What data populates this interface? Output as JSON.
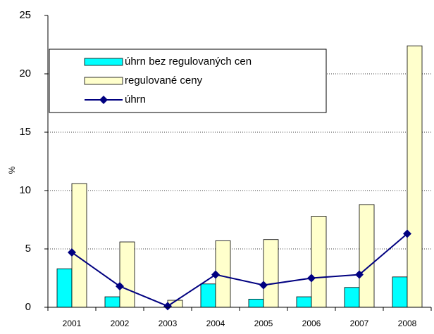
{
  "chart_data": {
    "type": "bar",
    "categories": [
      "2001",
      "2002",
      "2003",
      "2004",
      "2005",
      "2006",
      "2007",
      "2008"
    ],
    "ylabel": "%",
    "series": [
      {
        "name": "úhrn bez regulovaných cen",
        "color": "#00ffff",
        "type": "bar",
        "values": [
          3.3,
          0.9,
          0,
          2.0,
          0.7,
          0.9,
          1.7,
          2.6
        ]
      },
      {
        "name": "regulované ceny",
        "color": "#ffffcc",
        "type": "bar",
        "values": [
          10.6,
          5.6,
          0.6,
          5.7,
          5.8,
          7.8,
          8.8,
          22.4
        ]
      },
      {
        "name": "úhrn",
        "color": "#000080",
        "type": "line",
        "values": [
          4.7,
          1.8,
          0.1,
          2.8,
          1.9,
          2.5,
          2.8,
          6.3
        ]
      }
    ],
    "ylim": [
      0,
      25
    ],
    "yticks": [
      0,
      5,
      10,
      15,
      20,
      25
    ],
    "grid": true,
    "legend": "upper left"
  }
}
